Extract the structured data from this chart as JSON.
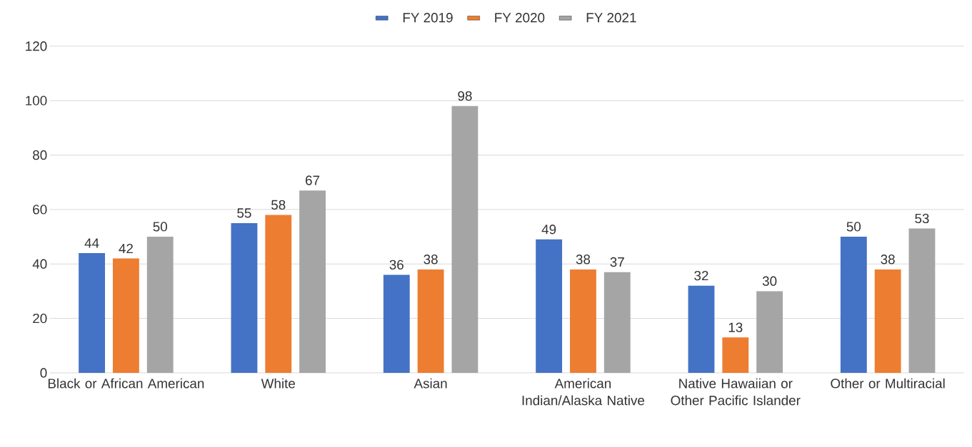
{
  "chart_data": {
    "type": "bar",
    "categories": [
      "Black or African American",
      "White",
      "Asian",
      "American Indian/Alaska Native",
      "Native Hawaiian or Other Pacific Islander",
      "Other or Multiracial"
    ],
    "series": [
      {
        "name": "FY 2019",
        "color": "#4472c4",
        "values": [
          44,
          55,
          36,
          49,
          32,
          50
        ]
      },
      {
        "name": "FY 2020",
        "color": "#ed7d31",
        "values": [
          42,
          58,
          38,
          38,
          13,
          38
        ]
      },
      {
        "name": "FY 2021",
        "color": "#a5a5a5",
        "values": [
          50,
          67,
          98,
          37,
          30,
          53
        ]
      }
    ],
    "ylim": [
      0,
      120
    ],
    "yticks": [
      0,
      20,
      40,
      60,
      80,
      100,
      120
    ],
    "grid": "y",
    "legend": "top",
    "data_labels": true
  }
}
